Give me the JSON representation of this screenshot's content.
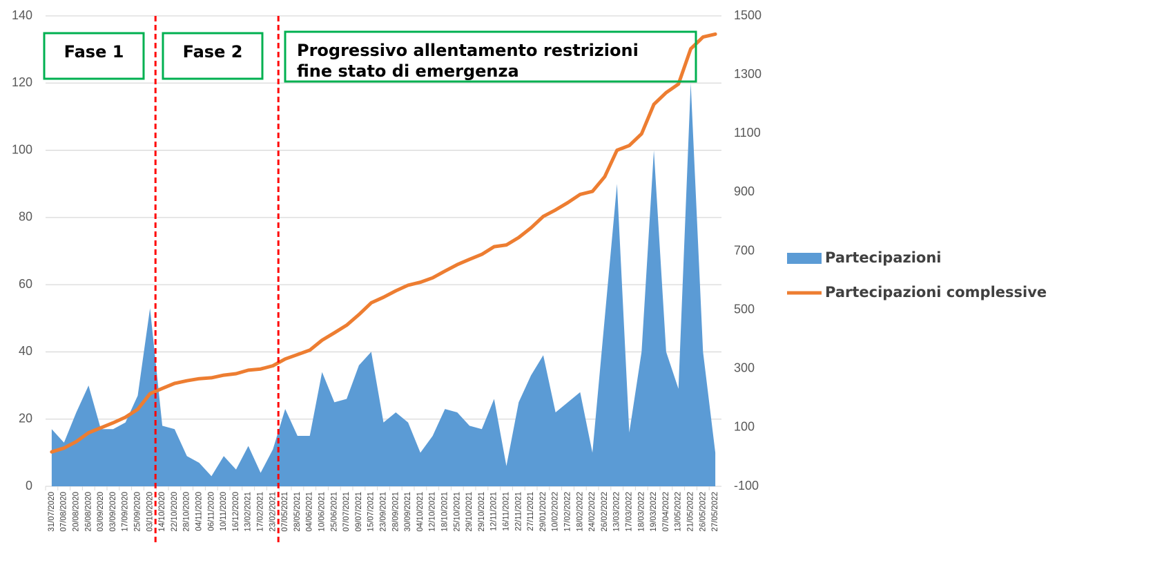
{
  "chart_data": {
    "type": "area-line",
    "categories": [
      "31/07/2020",
      "07/08/2020",
      "20/08/2020",
      "26/08/2020",
      "03/09/2020",
      "03/09/2020",
      "17/09/2020",
      "25/09/2020",
      "03/10/2020",
      "14/10/2020",
      "22/10/2020",
      "28/10/2020",
      "04/11/2020",
      "06/11/2020",
      "10/11/2020",
      "16/12/2020",
      "13/02/2021",
      "17/02/2021",
      "23/02/2021",
      "07/05/2021",
      "28/05/2021",
      "04/06/2021",
      "10/06/2021",
      "25/06/2021",
      "07/07/2021",
      "09/07/2021",
      "15/07/2021",
      "23/09/2021",
      "28/09/2021",
      "30/09/2021",
      "04/10/2021",
      "12/10/2021",
      "18/10/2021",
      "25/10/2021",
      "29/10/2021",
      "29/10/2021",
      "12/11/2021",
      "16/11/2021",
      "22/11/2021",
      "27/11/2021",
      "29/01/2022",
      "10/02/2022",
      "17/02/2022",
      "18/02/2022",
      "24/02/2022",
      "26/02/2022",
      "13/03/2022",
      "17/03/2022",
      "18/03/2022",
      "19/03/2022",
      "07/04/2022",
      "13/05/2022",
      "21/05/2022",
      "26/05/2022",
      "27/05/2022"
    ],
    "series": [
      {
        "name": "Partecipazioni",
        "color": "#5b9bd5",
        "kind": "area",
        "axis": "y",
        "values": [
          17,
          13,
          22,
          30,
          17,
          17,
          19,
          27,
          53,
          18,
          17,
          9,
          7,
          3,
          9,
          5,
          12,
          4,
          11,
          23,
          15,
          15,
          34,
          25,
          26,
          36,
          40,
          19,
          22,
          19,
          10,
          15,
          23,
          22,
          18,
          17,
          26,
          6,
          25,
          33,
          39,
          22,
          25,
          28,
          10,
          50,
          90,
          16,
          40,
          100,
          40,
          29,
          120,
          40,
          10
        ]
      },
      {
        "name": "Partecipazioni complessive",
        "color": "#ed7d31",
        "kind": "line",
        "axis": "y2",
        "values": [
          17,
          30,
          52,
          82,
          99,
          116,
          135,
          162,
          215,
          233,
          250,
          259,
          266,
          269,
          278,
          283,
          295,
          299,
          310,
          333,
          348,
          363,
          397,
          422,
          448,
          484,
          524,
          543,
          565,
          584,
          594,
          609,
          632,
          654,
          672,
          689,
          715,
          721,
          746,
          779,
          818,
          840,
          865,
          893,
          903,
          953,
          1043,
          1059,
          1099,
          1199,
          1239,
          1268,
          1388,
          1428,
          1438
        ]
      }
    ],
    "ylim": [
      0,
      140
    ],
    "yticks": [
      0,
      20,
      40,
      60,
      80,
      100,
      120,
      140
    ],
    "y2lim": [
      -100,
      1500
    ],
    "y2ticks": [
      -100,
      100,
      300,
      500,
      700,
      900,
      1100,
      1300,
      1500
    ],
    "grid": true,
    "legend": "right",
    "annotations": [
      "Fase 1",
      "Fase 2",
      "Progressivo allentamento restrizioni",
      "fine stato di emergenza"
    ]
  }
}
